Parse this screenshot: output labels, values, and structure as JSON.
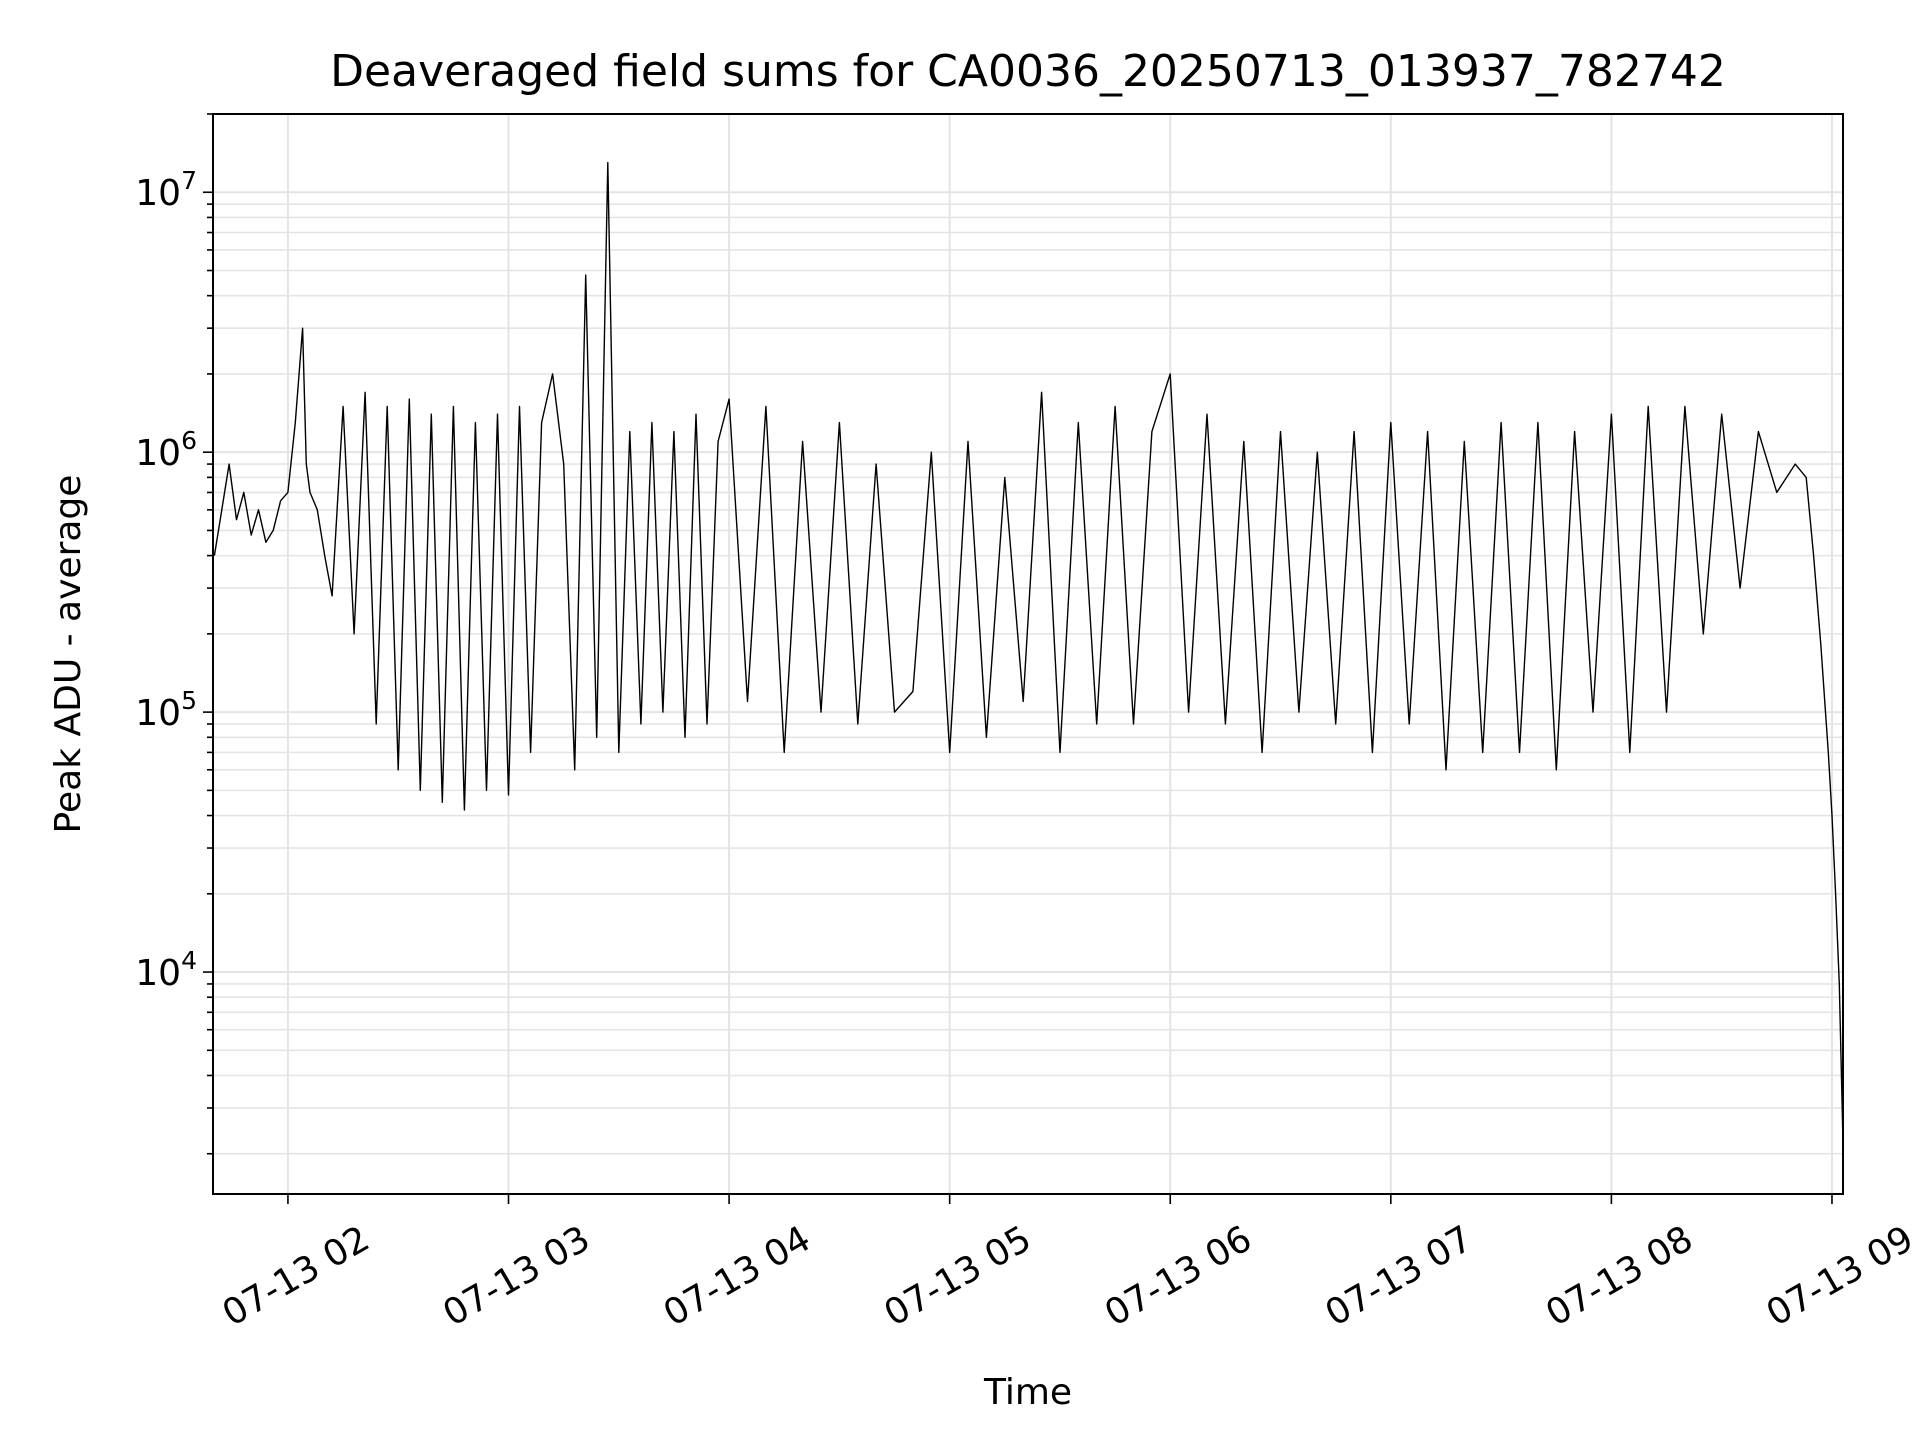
{
  "chart_data": {
    "type": "line",
    "title": "Deaveraged field sums for CA0036_20250713_013937_782742",
    "xlabel": "Time",
    "ylabel": "Peak ADU - average",
    "y_scale": "log",
    "ylim": [
      1400,
      20000000
    ],
    "xlim": [
      "07-13 01:39:37",
      "07-13 09:03"
    ],
    "grid": true,
    "legend": "none",
    "line_color": "#000000",
    "x_ticks": [
      "07-13 02",
      "07-13 03",
      "07-13 04",
      "07-13 05",
      "07-13 06",
      "07-13 07",
      "07-13 08",
      "07-13 09"
    ],
    "y_ticks": [
      {
        "value": 10000,
        "base": "10",
        "exp": "4"
      },
      {
        "value": 100000,
        "base": "10",
        "exp": "5"
      },
      {
        "value": 1000000,
        "base": "10",
        "exp": "6"
      },
      {
        "value": 10000000,
        "base": "10",
        "exp": "7"
      }
    ],
    "series": [
      {
        "x": [
          "01:40",
          "01:42",
          "01:44",
          "01:46",
          "01:48",
          "01:50",
          "01:52",
          "01:54",
          "01:56",
          "01:58",
          "02:00",
          "02:02",
          "02:04",
          "02:05",
          "02:06",
          "02:08",
          "02:10",
          "02:12",
          "02:15",
          "02:18",
          "02:21",
          "02:24",
          "02:27",
          "02:30",
          "02:33",
          "02:36",
          "02:39",
          "02:42",
          "02:45",
          "02:48",
          "02:51",
          "02:54",
          "02:57",
          "03:00",
          "03:03",
          "03:06",
          "03:09",
          "03:12",
          "03:15",
          "03:18",
          "03:21",
          "03:24",
          "03:27",
          "03:30",
          "03:33",
          "03:36",
          "03:39",
          "03:42",
          "03:45",
          "03:48",
          "03:51",
          "03:54",
          "03:57",
          "04:00",
          "04:05",
          "04:10",
          "04:15",
          "04:20",
          "04:25",
          "04:30",
          "04:35",
          "04:40",
          "04:45",
          "04:50",
          "04:55",
          "05:00",
          "05:05",
          "05:10",
          "05:15",
          "05:20",
          "05:25",
          "05:30",
          "05:35",
          "05:40",
          "05:45",
          "05:50",
          "05:55",
          "06:00",
          "06:05",
          "06:10",
          "06:15",
          "06:20",
          "06:25",
          "06:30",
          "06:35",
          "06:40",
          "06:45",
          "06:50",
          "06:55",
          "07:00",
          "07:05",
          "07:10",
          "07:15",
          "07:20",
          "07:25",
          "07:30",
          "07:35",
          "07:40",
          "07:45",
          "07:50",
          "07:55",
          "08:00",
          "08:05",
          "08:10",
          "08:15",
          "08:20",
          "08:25",
          "08:30",
          "08:35",
          "08:40",
          "08:45",
          "08:50",
          "08:53",
          "08:55",
          "08:57",
          "08:59",
          "09:00",
          "09:01",
          "09:02",
          "09:03"
        ],
        "y": [
          400000,
          600000,
          900000,
          550000,
          700000,
          480000,
          600000,
          450000,
          500000,
          650000,
          700000,
          1300000,
          3000000,
          900000,
          700000,
          600000,
          400000,
          280000,
          1500000,
          200000,
          1700000,
          90000,
          1500000,
          60000,
          1600000,
          50000,
          1400000,
          45000,
          1500000,
          42000,
          1300000,
          50000,
          1400000,
          48000,
          1500000,
          70000,
          1300000,
          2000000,
          900000,
          60000,
          4800000,
          80000,
          13000000,
          70000,
          1200000,
          90000,
          1300000,
          100000,
          1200000,
          80000,
          1400000,
          90000,
          1100000,
          1600000,
          110000,
          1500000,
          70000,
          1100000,
          100000,
          1300000,
          90000,
          900000,
          100000,
          120000,
          1000000,
          70000,
          1100000,
          80000,
          800000,
          110000,
          1700000,
          70000,
          1300000,
          90000,
          1500000,
          90000,
          1200000,
          2000000,
          100000,
          1400000,
          90000,
          1100000,
          70000,
          1200000,
          100000,
          1000000,
          90000,
          1200000,
          70000,
          1300000,
          90000,
          1200000,
          60000,
          1100000,
          70000,
          1300000,
          70000,
          1300000,
          60000,
          1200000,
          100000,
          1400000,
          70000,
          1500000,
          100000,
          1500000,
          200000,
          1400000,
          300000,
          1200000,
          700000,
          900000,
          800000,
          400000,
          180000,
          70000,
          40000,
          20000,
          9000,
          2200
        ]
      }
    ]
  }
}
